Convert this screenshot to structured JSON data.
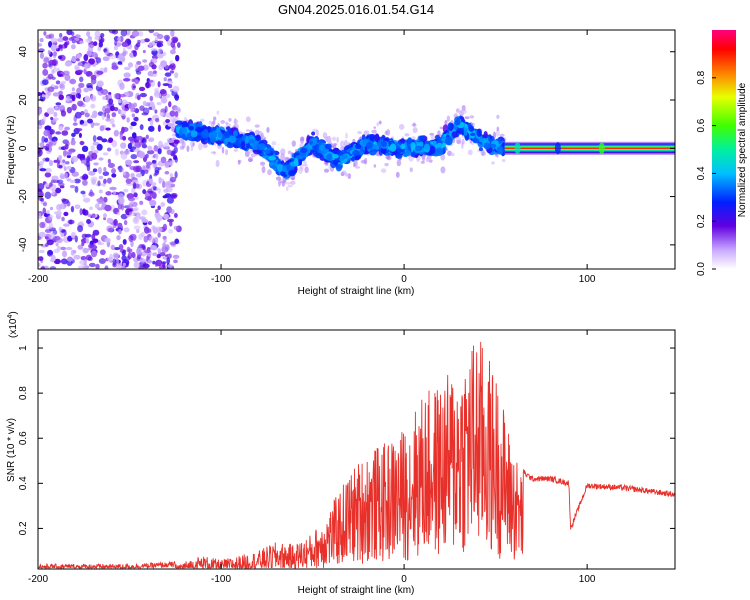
{
  "title": "GN04.2025.016.01.54.G14",
  "colors": {
    "snr_line": "#e8302a",
    "spectrogram_low": "#7a00e0",
    "spectrogram_mid": "#00d0d0",
    "spectrogram_high": "#e00000"
  },
  "chart_data": [
    {
      "type": "heatmap",
      "title": "GN04.2025.016.01.54.G14",
      "xlabel": "Height of straight line (km)",
      "ylabel": "Frequency (Hz)",
      "xlim": [
        -200,
        148
      ],
      "ylim": [
        -50,
        49
      ],
      "x_ticks": [
        -200,
        -100,
        0,
        100
      ],
      "y_ticks": [
        -40,
        -20,
        0,
        20,
        40
      ],
      "x_tick_labels": [
        "-200",
        "-100",
        "0",
        "100"
      ],
      "y_tick_labels": [
        "-40",
        "-20",
        "0",
        "20",
        "40"
      ],
      "colorbar": {
        "label": "Normalized spectral amplitude",
        "range": [
          0,
          1
        ],
        "ticks": [
          0.0,
          0.2,
          0.4,
          0.6,
          0.8
        ],
        "tick_labels": [
          "0.0",
          "0.2",
          "0.4",
          "0.6",
          "0.8"
        ]
      },
      "regions": [
        {
          "name": "noise",
          "x_range": [
            -200,
            -123
          ],
          "freq_range": [
            -50,
            49
          ],
          "amplitude": 0.15
        },
        {
          "name": "scattered-band",
          "x_range": [
            -123,
            55
          ],
          "center_freq": [
            [
              -123,
              8
            ],
            [
              -100,
              5
            ],
            [
              -80,
              2
            ],
            [
              -65,
              -10
            ],
            [
              -50,
              2
            ],
            [
              -35,
              -5
            ],
            [
              -20,
              2
            ],
            [
              0,
              0
            ],
            [
              20,
              1
            ],
            [
              30,
              10
            ],
            [
              45,
              2
            ],
            [
              55,
              0
            ]
          ],
          "amplitude": 0.3
        },
        {
          "name": "stable-line",
          "x_range": [
            55,
            148
          ],
          "center_freq": 0,
          "amplitude": 0.8
        }
      ]
    },
    {
      "type": "line",
      "xlabel": "Height of straight line (km)",
      "ylabel": "SNR (10 * v/v)",
      "scale_label": "(x10",
      "scale_exponent": "4",
      "scale_suffix": ")",
      "xlim": [
        -200,
        148
      ],
      "ylim": [
        0.02,
        1.08
      ],
      "x_ticks": [
        -200,
        -100,
        0,
        100
      ],
      "y_ticks": [
        0.2,
        0.4,
        0.6,
        0.8,
        1
      ],
      "x_tick_labels": [
        "-200",
        "-100",
        "0",
        "100"
      ],
      "y_tick_labels": [
        "0.2",
        "0.4",
        "0.6",
        "0.8",
        "1"
      ],
      "series": [
        {
          "color": "#e8302a",
          "x": [
            -200,
            -150,
            -125,
            -110,
            -100,
            -90,
            -80,
            -70,
            -60,
            -50,
            -40,
            -30,
            -20,
            -10,
            0,
            10,
            20,
            30,
            40,
            50,
            60,
            65,
            70,
            80,
            90,
            91,
            100,
            120,
            148
          ],
          "y": [
            0.03,
            0.03,
            0.04,
            0.08,
            0.06,
            0.08,
            0.1,
            0.14,
            0.13,
            0.18,
            0.3,
            0.45,
            0.55,
            0.58,
            0.65,
            0.8,
            0.85,
            0.95,
            1.08,
            0.9,
            0.55,
            0.45,
            0.42,
            0.42,
            0.4,
            0.2,
            0.39,
            0.38,
            0.35
          ]
        }
      ]
    }
  ]
}
